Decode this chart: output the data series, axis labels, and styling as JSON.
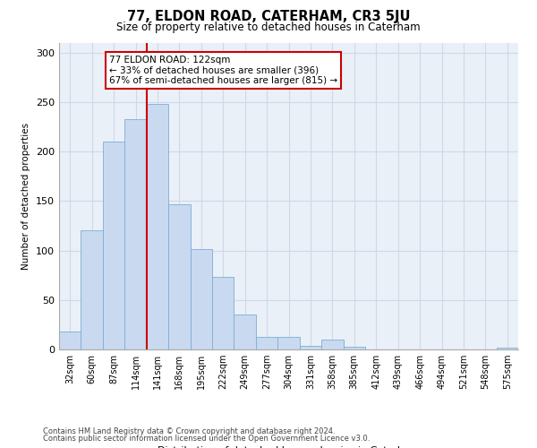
{
  "title": "77, ELDON ROAD, CATERHAM, CR3 5JU",
  "subtitle": "Size of property relative to detached houses in Caterham",
  "xlabel": "Distribution of detached houses by size in Caterham",
  "ylabel": "Number of detached properties",
  "bin_labels": [
    "32sqm",
    "60sqm",
    "87sqm",
    "114sqm",
    "141sqm",
    "168sqm",
    "195sqm",
    "222sqm",
    "249sqm",
    "277sqm",
    "304sqm",
    "331sqm",
    "358sqm",
    "385sqm",
    "412sqm",
    "439sqm",
    "466sqm",
    "494sqm",
    "521sqm",
    "548sqm",
    "575sqm"
  ],
  "bar_values": [
    18,
    120,
    210,
    233,
    248,
    147,
    101,
    73,
    35,
    13,
    13,
    4,
    10,
    3,
    0,
    0,
    0,
    0,
    0,
    0,
    2
  ],
  "bar_color": "#c9d9f0",
  "bar_edge_color": "#7baed4",
  "vline_x": 3.5,
  "vline_color": "#cc0000",
  "annotation_text": "77 ELDON ROAD: 122sqm\n← 33% of detached houses are smaller (396)\n67% of semi-detached houses are larger (815) →",
  "annotation_box_color": "#ffffff",
  "annotation_box_edge": "#cc0000",
  "ylim": [
    0,
    310
  ],
  "yticks": [
    0,
    50,
    100,
    150,
    200,
    250,
    300
  ],
  "grid_color": "#d0d8e8",
  "background_color": "#eaf0f8",
  "footer_line1": "Contains HM Land Registry data © Crown copyright and database right 2024.",
  "footer_line2": "Contains public sector information licensed under the Open Government Licence v3.0."
}
